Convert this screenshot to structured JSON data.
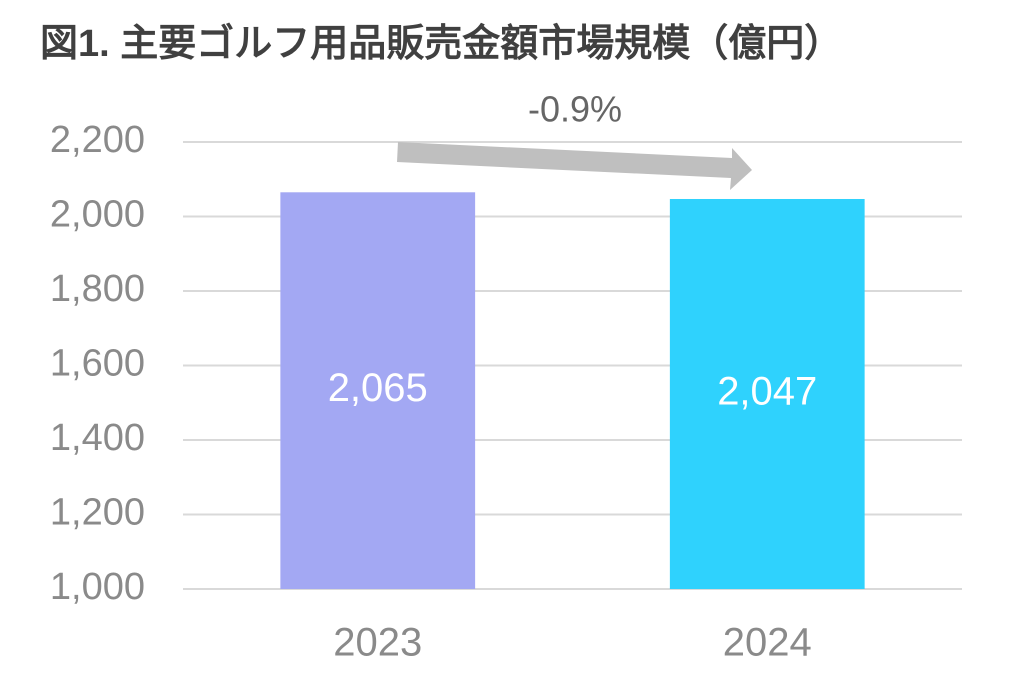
{
  "chart_data": {
    "type": "bar",
    "title": "図1. 主要ゴルフ用品販売金額市場規模（億円）",
    "categories": [
      "2023",
      "2024"
    ],
    "values": [
      2065,
      2047
    ],
    "value_labels": [
      "2,065",
      "2,047"
    ],
    "colors": [
      "#a3a8f3",
      "#2fd2fd"
    ],
    "annotation": "-0.9%",
    "ylim": [
      1000,
      2200
    ],
    "yticks": [
      {
        "value": 1000,
        "label": "1,000"
      },
      {
        "value": 1200,
        "label": "1,200"
      },
      {
        "value": 1400,
        "label": "1,400"
      },
      {
        "value": 1600,
        "label": "1,600"
      },
      {
        "value": 1800,
        "label": "1,800"
      },
      {
        "value": 2000,
        "label": "2,000"
      },
      {
        "value": 2200,
        "label": "2,200"
      }
    ],
    "grid": true
  }
}
